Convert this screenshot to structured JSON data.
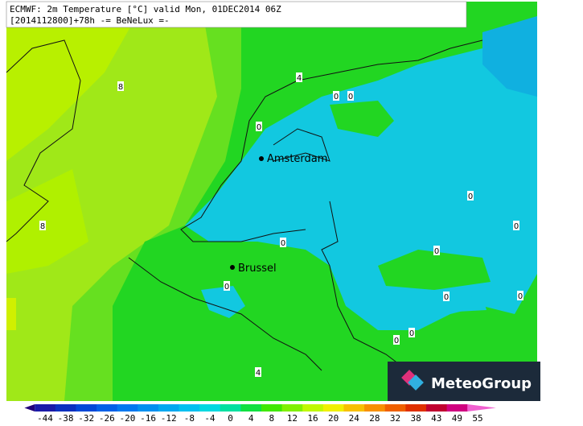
{
  "header": {
    "line1": "ECMWF: 2m Temperature [°C] valid Mon, 01DEC2014 06Z",
    "line2": "[2014112800]+78h -= BeNeLux =-"
  },
  "cities": [
    {
      "label": "Amsterdam"
    },
    {
      "label": "Brussel"
    }
  ],
  "contour_labels": [
    "8",
    "4",
    "0",
    "0",
    "0",
    "0",
    "0",
    "8",
    "0",
    "0",
    "0",
    "0",
    "0",
    "0",
    "0",
    "4"
  ],
  "logo": "MeteoGroup",
  "colorbar": {
    "ticks": [
      -44,
      -38,
      -32,
      -26,
      -20,
      -16,
      -12,
      -8,
      -4,
      0,
      4,
      8,
      12,
      16,
      20,
      24,
      28,
      32,
      38,
      43,
      49,
      55
    ],
    "colors": [
      "#22007a",
      "#1a1aa8",
      "#0a30c0",
      "#0048d8",
      "#0060e8",
      "#0078f0",
      "#0090f0",
      "#00a8f0",
      "#00c0f0",
      "#00d8e0",
      "#00e0a0",
      "#10e040",
      "#40e800",
      "#80f000",
      "#c0f800",
      "#f0f000",
      "#f8c000",
      "#f89000",
      "#f06000",
      "#e03000",
      "#c00030",
      "#d00080",
      "#f060d0"
    ]
  }
}
